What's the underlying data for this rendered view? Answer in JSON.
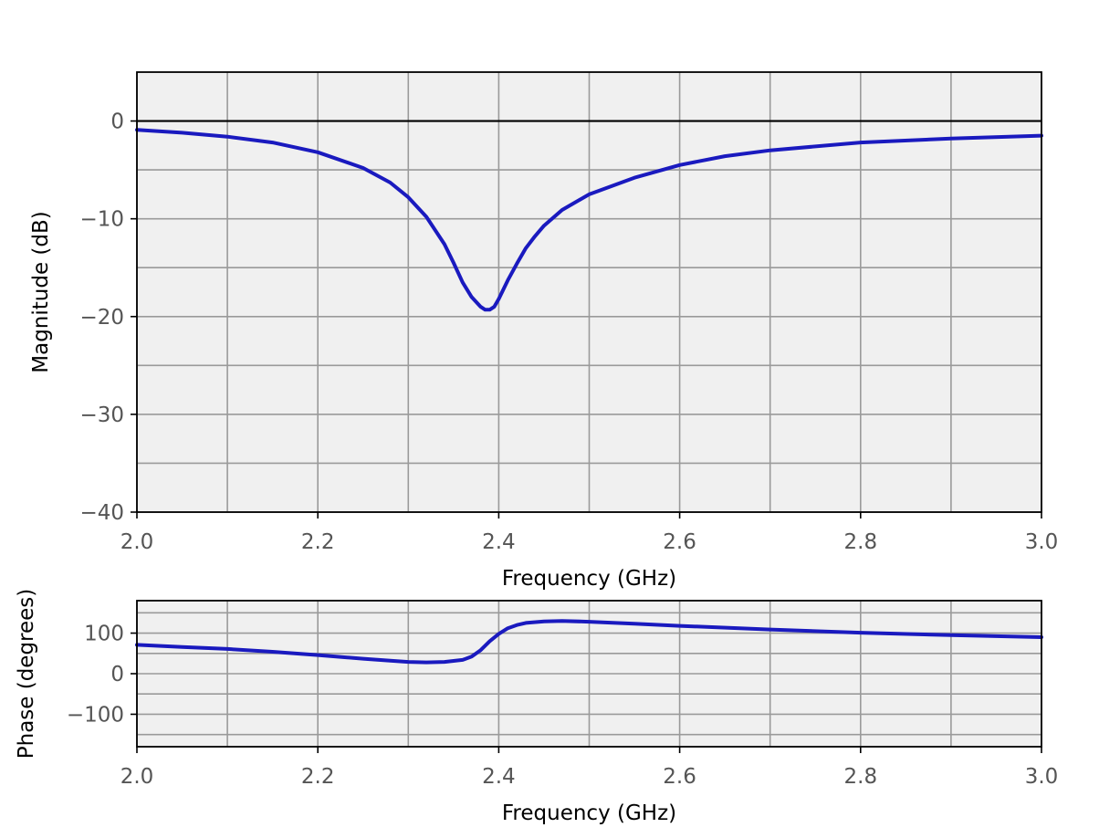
{
  "chart_data": [
    {
      "type": "line",
      "xlabel": "Frequency (GHz)",
      "ylabel": "Magnitude (dB)",
      "xlim": [
        2.0,
        3.0
      ],
      "ylim": [
        -40,
        5
      ],
      "xticks": [
        2.0,
        2.2,
        2.4,
        2.6,
        2.8,
        3.0
      ],
      "xtick_labels": [
        "2.0",
        "2.2",
        "2.4",
        "2.6",
        "2.8",
        "3.0"
      ],
      "xgrid": [
        2.0,
        2.1,
        2.2,
        2.3,
        2.4,
        2.5,
        2.6,
        2.7,
        2.8,
        2.9,
        3.0
      ],
      "yticks": [
        0,
        -10,
        -20,
        -30,
        -40
      ],
      "ytick_labels": [
        "0",
        "−10",
        "−20",
        "−30",
        "−40"
      ],
      "ygrid": [
        0,
        -5,
        -10,
        -15,
        -20,
        -25,
        -30,
        -35,
        -40
      ],
      "hline": 0,
      "grid": true,
      "series": [
        {
          "color": "#1a1abf",
          "x": [
            2.0,
            2.05,
            2.1,
            2.15,
            2.2,
            2.25,
            2.28,
            2.3,
            2.32,
            2.34,
            2.35,
            2.36,
            2.37,
            2.38,
            2.385,
            2.39,
            2.395,
            2.4,
            2.41,
            2.42,
            2.43,
            2.44,
            2.45,
            2.47,
            2.5,
            2.55,
            2.6,
            2.65,
            2.7,
            2.8,
            2.9,
            3.0
          ],
          "y": [
            -0.9,
            -1.2,
            -1.6,
            -2.2,
            -3.2,
            -4.8,
            -6.3,
            -7.8,
            -9.8,
            -12.6,
            -14.5,
            -16.5,
            -18.0,
            -19.0,
            -19.3,
            -19.3,
            -19.0,
            -18.2,
            -16.3,
            -14.6,
            -13.0,
            -11.8,
            -10.7,
            -9.1,
            -7.5,
            -5.8,
            -4.5,
            -3.6,
            -3.0,
            -2.2,
            -1.8,
            -1.5
          ]
        }
      ]
    },
    {
      "type": "line",
      "xlabel": "Frequency (GHz)",
      "ylabel": "Phase (degrees)",
      "xlim": [
        2.0,
        3.0
      ],
      "ylim": [
        -180,
        180
      ],
      "xticks": [
        2.0,
        2.2,
        2.4,
        2.6,
        2.8,
        3.0
      ],
      "xtick_labels": [
        "2.0",
        "2.2",
        "2.4",
        "2.6",
        "2.8",
        "3.0"
      ],
      "xgrid": [
        2.0,
        2.1,
        2.2,
        2.3,
        2.4,
        2.5,
        2.6,
        2.7,
        2.8,
        2.9,
        3.0
      ],
      "yticks": [
        100,
        0,
        -100
      ],
      "ytick_labels": [
        "100",
        "0",
        "−100"
      ],
      "ygrid": [
        150,
        100,
        50,
        0,
        -50,
        -100,
        -150
      ],
      "grid": true,
      "series": [
        {
          "color": "#1a1abf",
          "x": [
            2.0,
            2.05,
            2.1,
            2.15,
            2.2,
            2.25,
            2.28,
            2.3,
            2.32,
            2.34,
            2.36,
            2.37,
            2.38,
            2.39,
            2.4,
            2.41,
            2.42,
            2.43,
            2.45,
            2.47,
            2.5,
            2.55,
            2.6,
            2.7,
            2.8,
            2.9,
            3.0
          ],
          "y": [
            71,
            66,
            61,
            54,
            46,
            37,
            32,
            29,
            28,
            29,
            34,
            42,
            58,
            80,
            98,
            112,
            120,
            125,
            129,
            130,
            128,
            123,
            118,
            109,
            101,
            95,
            90
          ]
        }
      ]
    }
  ]
}
